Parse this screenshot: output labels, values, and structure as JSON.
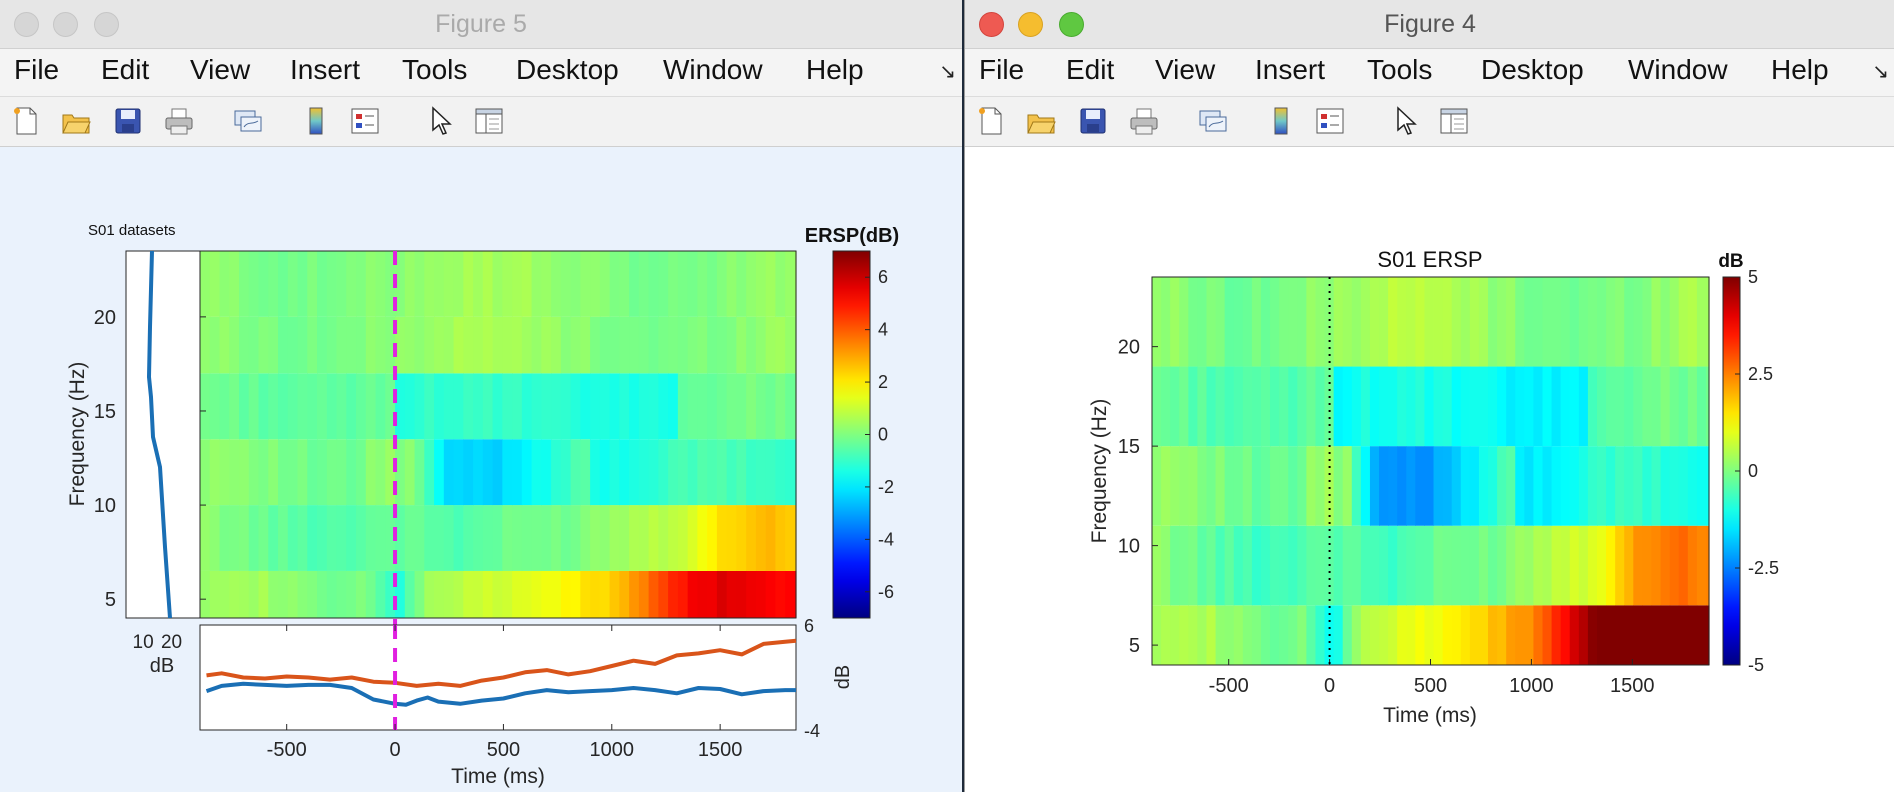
{
  "windows": {
    "fig5": {
      "title": "Figure 5",
      "menu": [
        "File",
        "Edit",
        "View",
        "Insert",
        "Tools",
        "Desktop",
        "Window",
        "Help"
      ],
      "toolbar_icons": [
        "new-figure-icon",
        "open-file-icon",
        "save-icon",
        "print-icon",
        "link-plot-icon",
        "insert-colorbar-icon",
        "insert-legend-icon",
        "edit-plot-pointer-icon",
        "property-inspector-icon"
      ]
    },
    "fig4": {
      "title": "Figure 4",
      "menu": [
        "File",
        "Edit",
        "View",
        "Insert",
        "Tools",
        "Desktop",
        "Window",
        "Help"
      ],
      "toolbar_icons": [
        "new-figure-icon",
        "open-file-icon",
        "save-icon",
        "print-icon",
        "link-plot-icon",
        "insert-colorbar-icon",
        "insert-legend-icon",
        "edit-plot-pointer-icon",
        "property-inspector-icon"
      ]
    }
  },
  "chart_data": [
    {
      "id": "fig5_main",
      "type": "heatmap",
      "title": "S01 datasets",
      "xlabel": "Time (ms)",
      "ylabel": "Frequency (Hz)",
      "xlim": [
        -900,
        1850
      ],
      "ylim": [
        4,
        23.5
      ],
      "xticks": [
        -500,
        0,
        500,
        1000,
        1500
      ],
      "yticks": [
        5,
        10,
        15,
        20
      ],
      "freq_bands": [
        {
          "from": 4,
          "to": 6.5
        },
        {
          "from": 6.5,
          "to": 10
        },
        {
          "from": 10,
          "to": 13.5
        },
        {
          "from": 13.5,
          "to": 17
        },
        {
          "from": 17,
          "to": 20
        },
        {
          "from": 20,
          "to": 23.5
        }
      ],
      "stimulus_line_ms": 0,
      "stimulus_line_color": "#e020e0",
      "colorbar": {
        "label": "ERSP(dB)",
        "range": [
          -7,
          7
        ],
        "ticks": [
          -6,
          -4,
          -2,
          0,
          2,
          4,
          6
        ]
      },
      "side_panel": {
        "xlabel": "dB",
        "xticks": [
          10,
          20
        ],
        "line_color": "#1a6fb5"
      },
      "bottom_panel": {
        "xlabel": "Time (ms)",
        "ylabel": "dB",
        "ylim": [
          -4,
          6
        ],
        "yticks": [
          -4,
          6
        ],
        "series": [
          {
            "color": "#d9541a",
            "values": [
              [
                -870,
                1.2
              ],
              [
                -800,
                1.4
              ],
              [
                -700,
                1.0
              ],
              [
                -600,
                0.9
              ],
              [
                -500,
                1.1
              ],
              [
                -400,
                1.0
              ],
              [
                -300,
                0.8
              ],
              [
                -200,
                1.0
              ],
              [
                -100,
                0.6
              ],
              [
                0,
                0.5
              ],
              [
                100,
                0.2
              ],
              [
                200,
                0.4
              ],
              [
                300,
                0.2
              ],
              [
                400,
                0.7
              ],
              [
                500,
                1.0
              ],
              [
                600,
                1.5
              ],
              [
                700,
                1.7
              ],
              [
                800,
                1.3
              ],
              [
                900,
                1.6
              ],
              [
                1000,
                2.1
              ],
              [
                1100,
                2.6
              ],
              [
                1200,
                2.3
              ],
              [
                1300,
                3.1
              ],
              [
                1400,
                3.3
              ],
              [
                1500,
                3.6
              ],
              [
                1600,
                3.2
              ],
              [
                1700,
                4.2
              ],
              [
                1800,
                4.4
              ],
              [
                1850,
                4.5
              ]
            ]
          },
          {
            "color": "#1a6fb5",
            "values": [
              [
                -870,
                -0.3
              ],
              [
                -800,
                0.2
              ],
              [
                -700,
                0.4
              ],
              [
                -600,
                0.3
              ],
              [
                -500,
                0.2
              ],
              [
                -400,
                0.3
              ],
              [
                -300,
                0.3
              ],
              [
                -200,
                0.0
              ],
              [
                -100,
                -1.1
              ],
              [
                0,
                -1.5
              ],
              [
                50,
                -1.6
              ],
              [
                100,
                -1.2
              ],
              [
                150,
                -0.9
              ],
              [
                200,
                -1.3
              ],
              [
                300,
                -1.5
              ],
              [
                400,
                -1.2
              ],
              [
                500,
                -1.0
              ],
              [
                600,
                -0.5
              ],
              [
                700,
                -0.2
              ],
              [
                800,
                -0.4
              ],
              [
                900,
                -0.3
              ],
              [
                1000,
                -0.2
              ],
              [
                1100,
                0.0
              ],
              [
                1200,
                -0.2
              ],
              [
                1300,
                -0.5
              ],
              [
                1400,
                0.0
              ],
              [
                1500,
                -0.1
              ],
              [
                1600,
                -0.6
              ],
              [
                1700,
                -0.3
              ],
              [
                1800,
                -0.2
              ],
              [
                1850,
                -0.2
              ]
            ]
          }
        ]
      }
    },
    {
      "id": "fig4_main",
      "type": "heatmap",
      "title": "S01 ERSP",
      "xlabel": "Time (ms)",
      "ylabel": "Frequency (Hz)",
      "xlim": [
        -880,
        1880
      ],
      "ylim": [
        4,
        23.5
      ],
      "xticks": [
        -500,
        0,
        500,
        1000,
        1500
      ],
      "yticks": [
        5,
        10,
        15,
        20
      ],
      "freq_bands": [
        {
          "from": 4,
          "to": 7
        },
        {
          "from": 7,
          "to": 11
        },
        {
          "from": 11,
          "to": 15
        },
        {
          "from": 15,
          "to": 19
        },
        {
          "from": 19,
          "to": 23.5
        }
      ],
      "stimulus_line_ms": 0,
      "stimulus_line_color": "#000000",
      "colorbar": {
        "label": "dB",
        "range": [
          -5,
          5
        ],
        "ticks": [
          -5,
          -2.5,
          0,
          2.5,
          5
        ]
      }
    }
  ]
}
